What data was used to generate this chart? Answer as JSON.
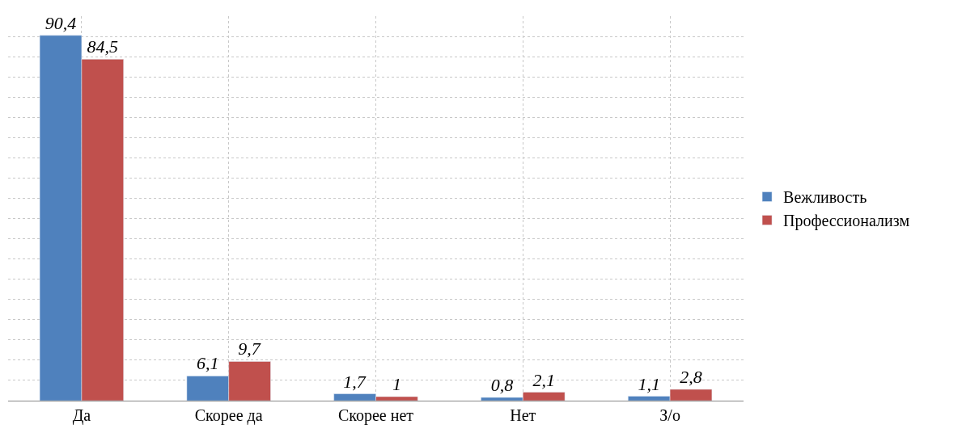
{
  "chart_data": {
    "type": "bar",
    "categories": [
      "Да",
      "Скорее да",
      "Скорее нет",
      "Нет",
      "З/о"
    ],
    "series": [
      {
        "name": "Вежливость",
        "color": "#4f81bd",
        "values": [
          90.4,
          6.1,
          1.7,
          0.8,
          1.1
        ],
        "value_labels": [
          "90,4",
          "6,1",
          "1,7",
          "0,8",
          "1,1"
        ]
      },
      {
        "name": "Профессионализм",
        "color": "#c0504d",
        "values": [
          84.5,
          9.7,
          1,
          2.1,
          2.8
        ],
        "value_labels": [
          "84,5",
          "9,7",
          "1",
          "2,1",
          "2,8"
        ]
      }
    ],
    "grid": true,
    "legend": "right",
    "tick_labels": "x"
  }
}
